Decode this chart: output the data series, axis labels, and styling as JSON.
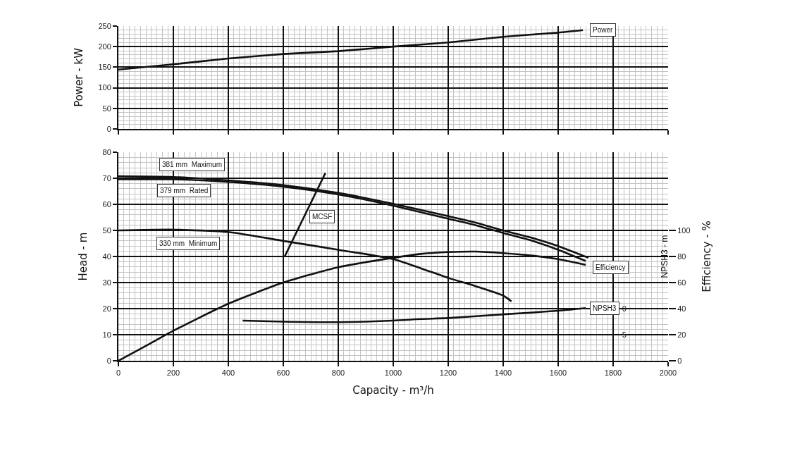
{
  "chart_data": [
    {
      "type": "line",
      "ylabel": "Power - kW",
      "xlim": [
        0,
        2000
      ],
      "xticks": [
        {
          "value": 0,
          "label": null
        },
        {
          "value": 200,
          "label": null
        },
        {
          "value": 400,
          "label": null
        },
        {
          "value": 600,
          "label": null
        },
        {
          "value": 800,
          "label": null
        },
        {
          "value": 1000,
          "label": null
        },
        {
          "value": 1200,
          "label": null
        },
        {
          "value": 1400,
          "label": null
        },
        {
          "value": 1600,
          "label": null
        },
        {
          "value": 1800,
          "label": null
        },
        {
          "value": 2000,
          "label": null
        }
      ],
      "ylim": [
        0,
        250
      ],
      "yticks": [
        0,
        50,
        100,
        150,
        200,
        250
      ],
      "tick_labels": "y",
      "grid": true,
      "marker": "none",
      "line_style": "solid",
      "series": [
        {
          "name": "Power",
          "color": "#111111",
          "x": [
            0,
            200,
            400,
            600,
            800,
            1000,
            1200,
            1400,
            1600,
            1690
          ],
          "values": [
            144,
            157,
            171,
            182,
            189,
            200,
            210,
            224,
            234,
            240
          ]
        }
      ]
    },
    {
      "type": "line",
      "xlabel": "Capacity - m³/h",
      "ylabel": "Head - m",
      "y2label": "Efficiency - %",
      "y3label": "NPSH3 - m",
      "xlim": [
        0,
        2000
      ],
      "xticks": [
        0,
        200,
        400,
        600,
        800,
        1000,
        1200,
        1400,
        1600,
        1800,
        2000
      ],
      "ylim": [
        0,
        80
      ],
      "yticks": [
        0,
        10,
        20,
        30,
        40,
        50,
        60,
        70,
        80
      ],
      "y2lim": [
        0,
        160
      ],
      "y2ticks": [
        0,
        20,
        40,
        60,
        80,
        100
      ],
      "y3lim": [
        10,
        -30
      ],
      "y3ticks": [
        0,
        5
      ],
      "grid": true,
      "marker": "none",
      "line_style": "solid",
      "series": [
        {
          "name": "381 mm  Maximum",
          "color": "#111111",
          "x": [
            0,
            200,
            400,
            600,
            800,
            1000,
            1200,
            1300,
            1400,
            1500,
            1600,
            1710
          ],
          "values": [
            70.8,
            70.5,
            69.2,
            67.4,
            64.4,
            60.2,
            55.5,
            53,
            50,
            47.3,
            44,
            39.5
          ]
        },
        {
          "name": "379 mm  Rated",
          "color": "#111111",
          "x": [
            0,
            200,
            400,
            600,
            800,
            1000,
            1200,
            1300,
            1400,
            1500,
            1600,
            1700
          ],
          "values": [
            69.6,
            69.6,
            68.6,
            66.8,
            63.8,
            59.5,
            54.5,
            52,
            49,
            46.2,
            42.6,
            38.3
          ]
        },
        {
          "name": "330 mm  Minimum",
          "color": "#111111",
          "x": [
            0,
            200,
            400,
            600,
            800,
            1000,
            1100,
            1200,
            1300,
            1400,
            1430
          ],
          "values": [
            50,
            50.3,
            49.4,
            46,
            42.6,
            39,
            35.5,
            31.8,
            28.6,
            25,
            22.8
          ]
        },
        {
          "name": "MCSF",
          "color": "#111111",
          "x": [
            605,
            753
          ],
          "values": [
            40,
            72
          ]
        },
        {
          "name": "Efficiency",
          "color": "#111111",
          "axis": "y2",
          "x": [
            0,
            100,
            200,
            400,
            600,
            800,
            1000,
            1100,
            1200,
            1300,
            1400,
            1500,
            1600,
            1700
          ],
          "values": [
            0,
            11.4,
            23,
            43.8,
            60,
            71.8,
            79,
            82,
            83.4,
            83.8,
            82.6,
            80.8,
            78,
            73.6
          ]
        },
        {
          "name": "NPSH3",
          "color": "#111111",
          "axis": "y3",
          "x": [
            452,
            600,
            800,
            1000,
            1100,
            1200,
            1400,
            1600,
            1700
          ],
          "values": [
            2.3,
            2.5,
            2.6,
            2.3,
            2.0,
            1.8,
            1.1,
            0.4,
            -0.1
          ]
        }
      ]
    }
  ]
}
